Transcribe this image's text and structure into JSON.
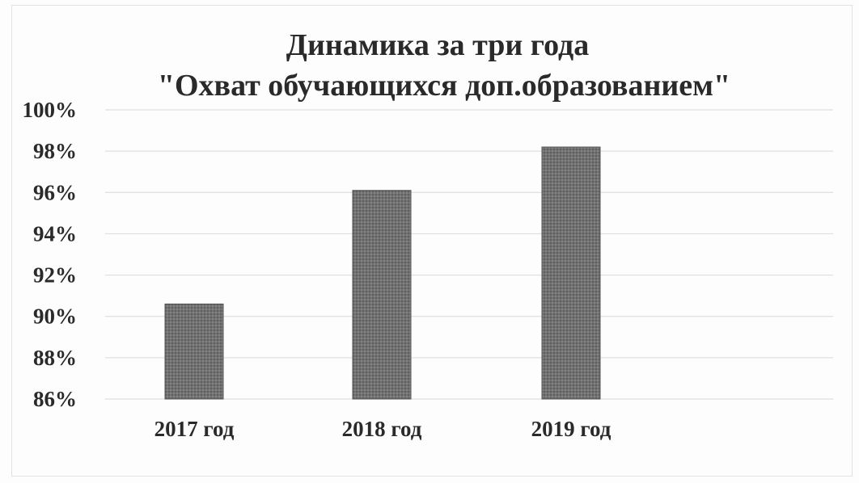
{
  "chart_data": {
    "type": "bar",
    "title": "Динамика за три года",
    "subtitle": "\"Охват обучающихся доп.образованием\"",
    "categories": [
      "2017 год",
      "2018 год",
      "2019 год"
    ],
    "values": [
      90.6,
      96.1,
      98.2
    ],
    "unit": "%",
    "ylim": [
      86,
      100
    ],
    "yticks": [
      86,
      88,
      90,
      92,
      94,
      96,
      98,
      100
    ],
    "ytick_labels": [
      "86%",
      "88%",
      "90%",
      "92%",
      "94%",
      "96%",
      "98%",
      "100%"
    ],
    "grid": true,
    "legend": "none",
    "bar_color": "#6e6e6e"
  }
}
